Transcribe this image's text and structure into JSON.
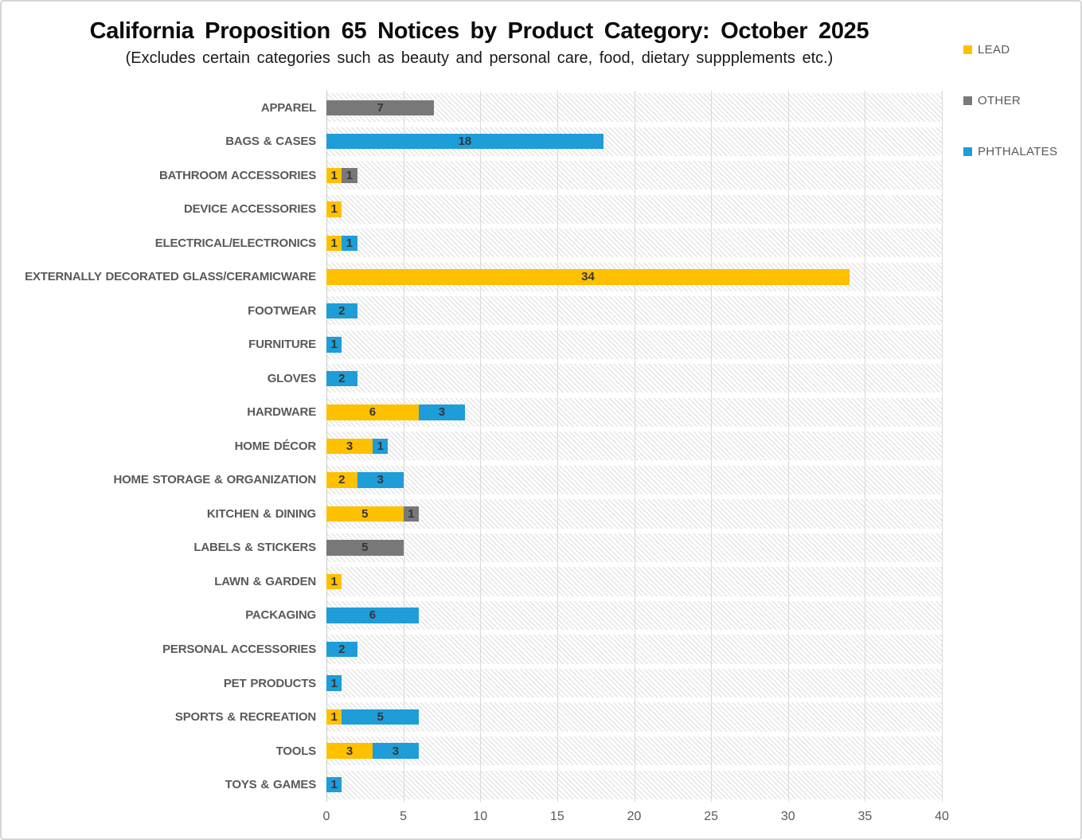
{
  "chart_data": {
    "type": "bar",
    "orientation": "horizontal",
    "stacked": true,
    "title": "California Proposition 65 Notices by Product Category: October 2025",
    "subtitle": "(Excludes certain categories such as beauty and personal care, food, dietary suppplements etc.)",
    "categories": [
      "APPAREL",
      "BAGS & CASES",
      "BATHROOM ACCESSORIES",
      "DEVICE ACCESSORIES",
      "ELECTRICAL/ELECTRONICS",
      "EXTERNALLY DECORATED GLASS/CERAMICWARE",
      "FOOTWEAR",
      "FURNITURE",
      "GLOVES",
      "HARDWARE",
      "HOME DÉCOR",
      "HOME STORAGE & ORGANIZATION",
      "KITCHEN & DINING",
      "LABELS & STICKERS",
      "LAWN & GARDEN",
      "PACKAGING",
      "PERSONAL ACCESSORIES",
      "PET PRODUCTS",
      "SPORTS & RECREATION",
      "TOOLS",
      "TOYS & GAMES"
    ],
    "series": [
      {
        "name": "LEAD",
        "color": "#FFC000",
        "values": [
          0,
          0,
          1,
          1,
          1,
          34,
          0,
          0,
          0,
          6,
          3,
          2,
          5,
          0,
          1,
          0,
          0,
          0,
          1,
          3,
          0
        ]
      },
      {
        "name": "OTHER",
        "color": "#787878",
        "values": [
          7,
          0,
          1,
          0,
          0,
          0,
          0,
          0,
          0,
          0,
          0,
          0,
          1,
          5,
          0,
          0,
          0,
          0,
          0,
          0,
          0
        ]
      },
      {
        "name": "PHTHALATES",
        "color": "#1E9DD8",
        "values": [
          0,
          18,
          0,
          0,
          1,
          0,
          2,
          1,
          2,
          3,
          1,
          3,
          0,
          0,
          0,
          6,
          2,
          1,
          5,
          3,
          1
        ]
      }
    ],
    "xlim": [
      0,
      40
    ],
    "x_ticks": [
      "0",
      "5",
      "10",
      "15",
      "20",
      "25",
      "30",
      "35",
      "40"
    ],
    "xlabel": "",
    "ylabel": "",
    "legend_position": "top-right",
    "grid": "vertical",
    "plot_background": "light diagonal hatch band per category",
    "data_labels": "value centered inside each segment",
    "colors": {
      "gridline": "#D9D9D9",
      "hatch": "#E4E4E4",
      "category_label": "#595959",
      "tick_label": "#595959",
      "data_label": "#363636",
      "title": "#0B0B0B"
    }
  }
}
